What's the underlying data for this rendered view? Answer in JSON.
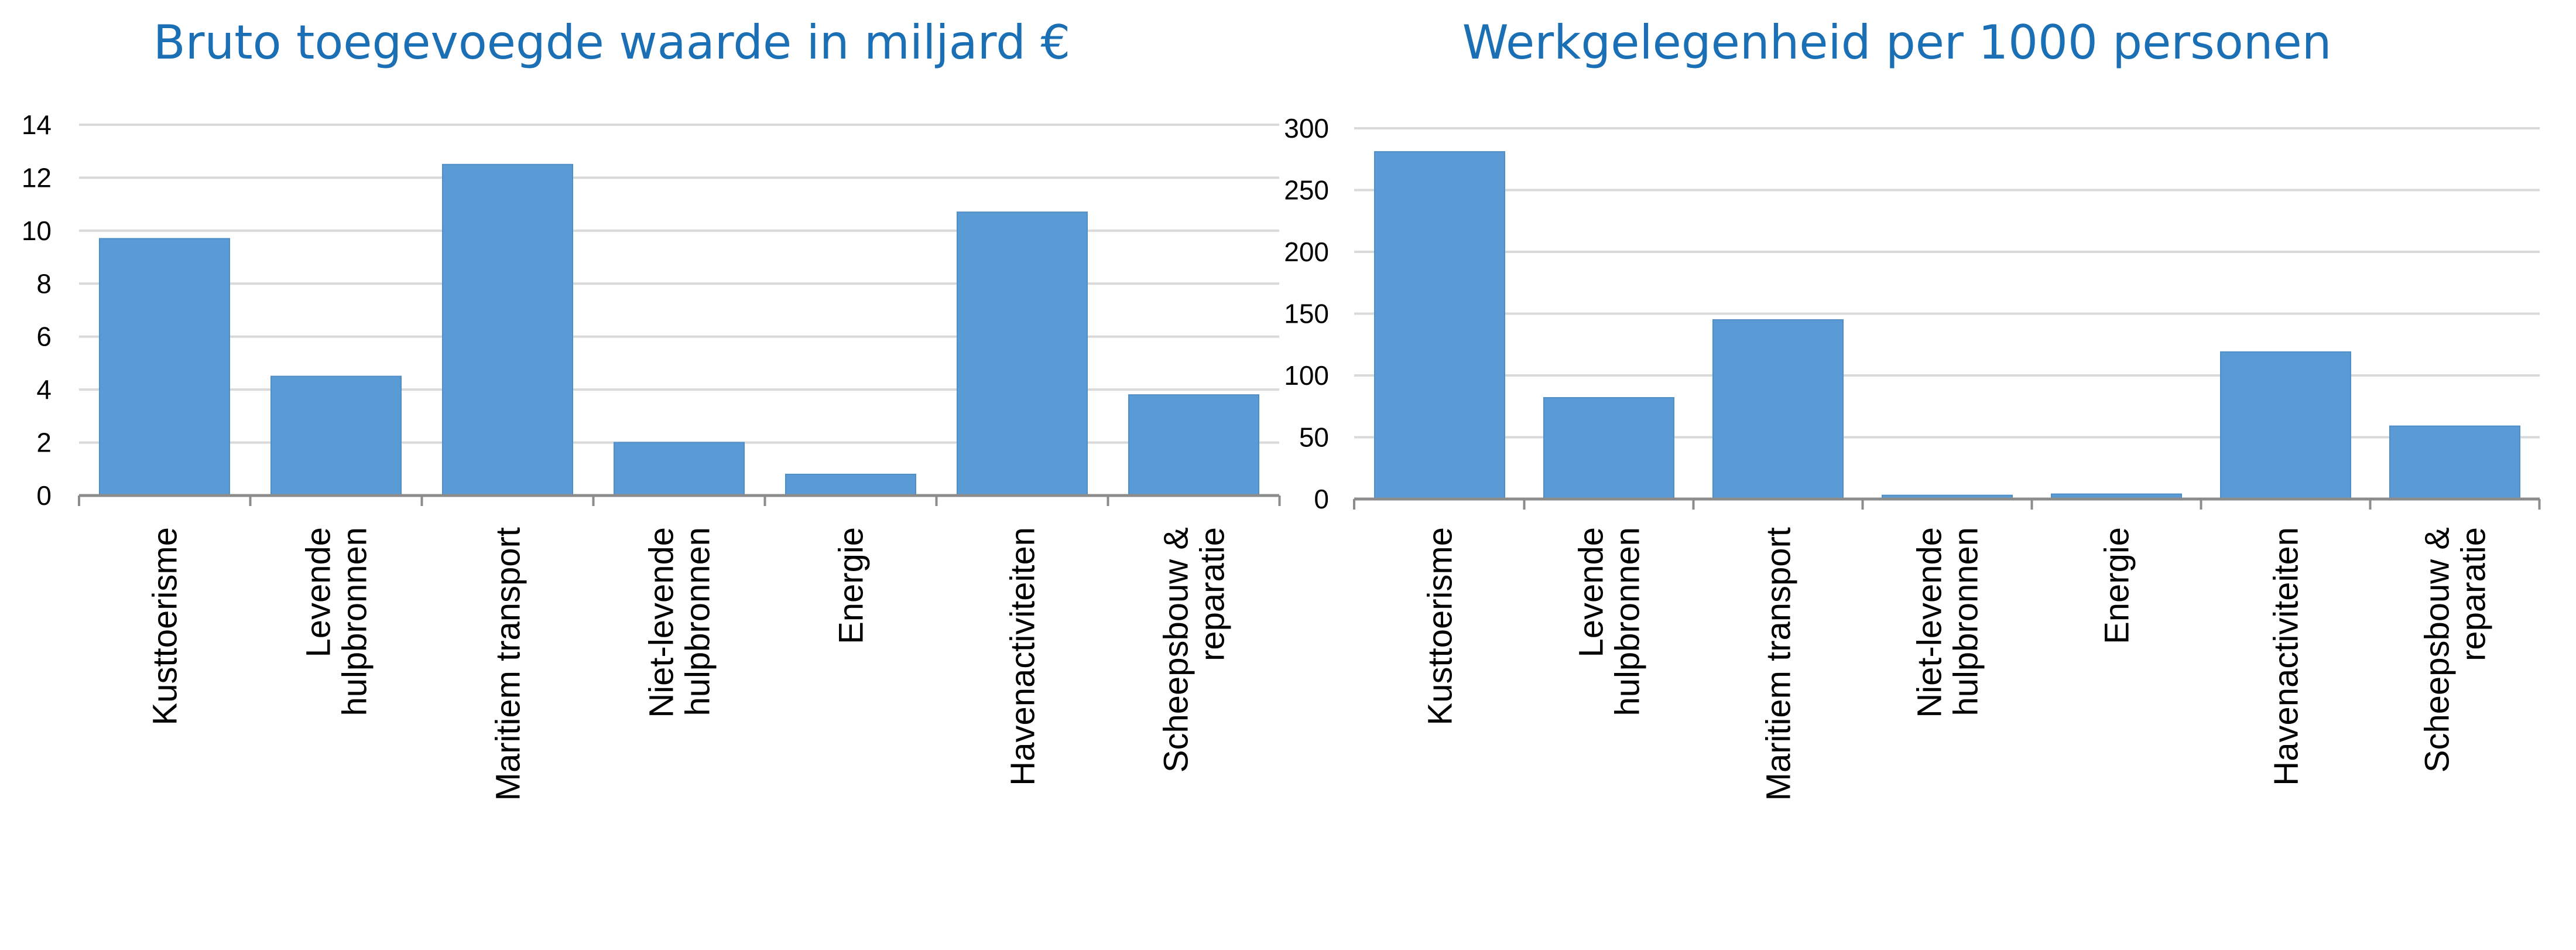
{
  "chart_data": [
    {
      "type": "bar",
      "title": "Bruto toegevoegde waarde in miljard €",
      "xlabel": "",
      "ylabel": "",
      "ylim": [
        0,
        14
      ],
      "yticks": [
        0,
        2,
        4,
        6,
        8,
        10,
        12,
        14
      ],
      "grid": true,
      "legend": "none",
      "color": "#5b9bd5",
      "categories": [
        [
          "Kusttoerisme"
        ],
        [
          "Levende",
          "hulpbronnen"
        ],
        [
          "Maritiem transport"
        ],
        [
          "Niet-levende",
          "hulpbronnen"
        ],
        [
          "Energie"
        ],
        [
          "Havenactiviteiten"
        ],
        [
          "Scheepsbouw &",
          "reparatie"
        ]
      ],
      "values": [
        9.7,
        4.5,
        12.5,
        2.0,
        0.8,
        10.7,
        3.8
      ]
    },
    {
      "type": "bar",
      "title": "Werkgelegenheid per 1000 personen",
      "xlabel": "",
      "ylabel": "",
      "ylim": [
        0,
        300
      ],
      "yticks": [
        0,
        50,
        100,
        150,
        200,
        250,
        300
      ],
      "grid": true,
      "legend": "none",
      "color": "#5b9bd5",
      "categories": [
        [
          "Kusttoerisme"
        ],
        [
          "Levende",
          "hulpbronnen"
        ],
        [
          "Maritiem transport"
        ],
        [
          "Niet-levende",
          "hulpbronnen"
        ],
        [
          "Energie"
        ],
        [
          "Havenactiviteiten"
        ],
        [
          "Scheepsbouw &",
          "reparatie"
        ]
      ],
      "values": [
        281,
        82,
        145,
        3,
        4,
        119,
        59
      ]
    }
  ]
}
